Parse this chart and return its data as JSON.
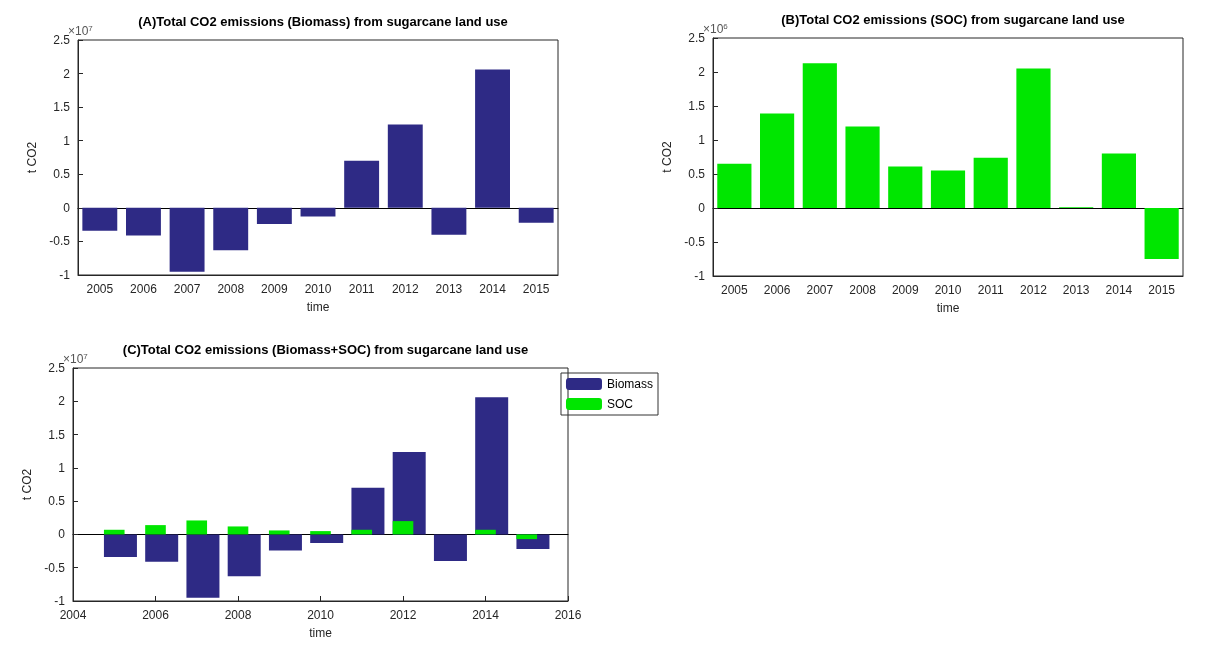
{
  "chart_data": [
    {
      "type": "bar",
      "title": "(A)Total CO2 emissions (Biomass) from sugarcane land use",
      "xlabel": "time",
      "ylabel": "t CO2",
      "annotations": [
        "×10$^{7}$"
      ],
      "categories": [
        "2005",
        "2006",
        "2007",
        "2008",
        "2009",
        "2010",
        "2011",
        "2012",
        "2013",
        "2014",
        "2015"
      ],
      "values": [
        -0.34,
        -0.41,
        -0.95,
        -0.63,
        -0.24,
        -0.13,
        0.7,
        1.24,
        -0.4,
        2.06,
        -0.22
      ],
      "color": "#2e2a85",
      "ylim": [
        -1,
        2.5
      ],
      "yticks": [
        -1,
        -0.5,
        0,
        0.5,
        1,
        1.5,
        2,
        2.5
      ]
    },
    {
      "type": "bar",
      "title": "(B)Total CO2 emissions (SOC) from sugarcane land use",
      "xlabel": "time",
      "ylabel": "t CO2",
      "annotations": [
        "×10$^{6}$"
      ],
      "categories": [
        "2005",
        "2006",
        "2007",
        "2008",
        "2009",
        "2010",
        "2011",
        "2012",
        "2013",
        "2014",
        "2015"
      ],
      "values": [
        0.65,
        1.39,
        2.13,
        1.2,
        0.61,
        0.55,
        0.74,
        2.05,
        0.01,
        0.8,
        -0.75
      ],
      "color": "#00e600",
      "ylim": [
        -1,
        2.5
      ],
      "yticks": [
        -1,
        -0.5,
        0,
        0.5,
        1,
        1.5,
        2,
        2.5
      ]
    },
    {
      "type": "bar",
      "title": "(C)Total CO2 emissions (Biomass+SOC) from sugarcane land use",
      "xlabel": "time",
      "ylabel": "t CO2",
      "annotations": [
        "×10$^{7}$"
      ],
      "x": [
        2005,
        2006,
        2007,
        2008,
        2009,
        2010,
        2011,
        2012,
        2013,
        2014,
        2015
      ],
      "series": [
        {
          "name": "Biomass",
          "color": "#2e2a85",
          "values": [
            -0.34,
            -0.41,
            -0.95,
            -0.63,
            -0.24,
            -0.13,
            0.7,
            1.24,
            -0.4,
            2.06,
            -0.22
          ]
        },
        {
          "name": "SOC",
          "color": "#00e600",
          "values": [
            0.07,
            0.14,
            0.21,
            0.12,
            0.06,
            0.05,
            0.07,
            0.2,
            0,
            0.07,
            -0.07
          ]
        }
      ],
      "xlim": [
        2004,
        2016
      ],
      "xticks": [
        2004,
        2006,
        2008,
        2010,
        2012,
        2014,
        2016
      ],
      "ylim": [
        -1,
        2.5
      ],
      "yticks": [
        -1,
        -0.5,
        0,
        0.5,
        1,
        1.5,
        2,
        2.5
      ],
      "legend": "top right"
    }
  ]
}
